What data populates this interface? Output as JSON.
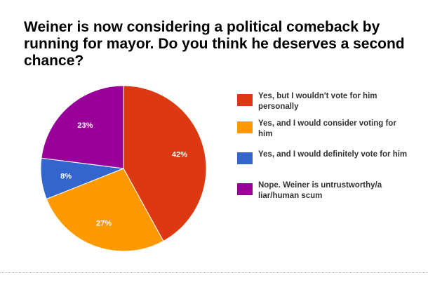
{
  "chart_data": {
    "type": "pie",
    "title": "Weiner is now considering a political comeback by running for mayor. Do you think he deserves a second chance?",
    "legend_position": "right",
    "slices": [
      {
        "label": "Yes, but I wouldn't vote for him personally",
        "value": 42,
        "value_label": "42%",
        "color": "#dc3912"
      },
      {
        "label": "Yes, and I would consider voting for him",
        "value": 27,
        "value_label": "27%",
        "color": "#ff9900"
      },
      {
        "label": "Yes, and I would definitely vote for him",
        "value": 8,
        "value_label": "8%",
        "color": "#3366cc"
      },
      {
        "label": "Nope. Weiner is untrustworthy/a liar/human scum",
        "value": 23,
        "value_label": "23%",
        "color": "#990099"
      }
    ]
  }
}
